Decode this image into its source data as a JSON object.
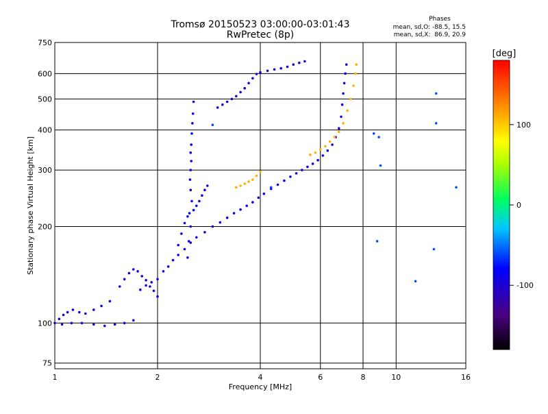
{
  "chart_data": {
    "type": "scatter",
    "title": "Tromsø 20150523 03:00:00-03:01:43",
    "subtitle": "RwPretec (8p)",
    "xlabel": "Frequency [MHz]",
    "ylabel": "Stationary phase Virtual Height [km]",
    "x_scale": "log",
    "y_scale": "log",
    "xlim": [
      1,
      16
    ],
    "ylim": [
      72,
      750
    ],
    "x_ticks": [
      1,
      2,
      4,
      6,
      8,
      10,
      16
    ],
    "x_tick_labels": [
      "1",
      "2",
      "4",
      "6",
      "8",
      "10",
      "16"
    ],
    "y_ticks": [
      75,
      100,
      200,
      300,
      400,
      500,
      600,
      750
    ],
    "y_tick_labels": [
      "75",
      "100",
      "200",
      "300",
      "400",
      "500",
      "600",
      "750"
    ],
    "grid": true,
    "phase_info": {
      "title": "Phases",
      "line1": "mean, sd,O: -88.5, 15.5",
      "line2": "mean, sd,X:  86.9, 20.9"
    },
    "colorbar": {
      "label": "[deg]",
      "range": [
        -180,
        180
      ],
      "ticks": [
        100,
        0,
        -100
      ],
      "tick_labels": [
        "100",
        "0",
        "-100"
      ]
    },
    "series": [
      {
        "name": "low-frequency trace (blue)",
        "phase": -90,
        "points": [
          [
            1.0,
            100
          ],
          [
            1.03,
            103
          ],
          [
            1.06,
            106
          ],
          [
            1.09,
            108
          ],
          [
            1.13,
            110
          ],
          [
            1.18,
            108
          ],
          [
            1.23,
            107
          ],
          [
            1.3,
            110
          ],
          [
            1.37,
            113
          ],
          [
            1.45,
            117
          ],
          [
            1.05,
            99
          ],
          [
            1.12,
            100
          ],
          [
            1.2,
            100
          ],
          [
            1.3,
            99
          ],
          [
            1.4,
            98
          ],
          [
            1.5,
            99
          ],
          [
            1.6,
            100
          ],
          [
            1.7,
            102
          ],
          [
            1.55,
            130
          ],
          [
            1.6,
            137
          ],
          [
            1.65,
            143
          ],
          [
            1.7,
            147
          ],
          [
            1.75,
            145
          ],
          [
            1.8,
            140
          ],
          [
            1.85,
            136
          ],
          [
            1.9,
            130
          ],
          [
            1.95,
            126
          ],
          [
            2.0,
            121
          ],
          [
            1.78,
            127
          ],
          [
            1.85,
            131
          ],
          [
            1.92,
            134
          ],
          [
            2.0,
            137
          ],
          [
            2.08,
            145
          ],
          [
            2.15,
            150
          ],
          [
            2.22,
            157
          ],
          [
            2.3,
            163
          ],
          [
            2.4,
            170
          ],
          [
            2.5,
            178
          ],
          [
            2.6,
            185
          ],
          [
            2.75,
            192
          ],
          [
            2.9,
            200
          ],
          [
            3.05,
            206
          ],
          [
            3.2,
            213
          ],
          [
            3.35,
            220
          ],
          [
            3.5,
            226
          ],
          [
            3.65,
            232
          ],
          [
            3.8,
            238
          ],
          [
            3.95,
            246
          ],
          [
            4.1,
            253
          ],
          [
            4.3,
            262
          ],
          [
            4.5,
            270
          ],
          [
            4.7,
            278
          ],
          [
            4.9,
            286
          ],
          [
            5.1,
            293
          ],
          [
            5.3,
            300
          ],
          [
            5.5,
            307
          ],
          [
            5.7,
            314
          ],
          [
            5.9,
            322
          ],
          [
            6.1,
            333
          ],
          [
            6.3,
            345
          ],
          [
            6.5,
            360
          ],
          [
            6.65,
            380
          ],
          [
            6.8,
            405
          ],
          [
            6.9,
            440
          ],
          [
            6.95,
            480
          ],
          [
            7.0,
            520
          ],
          [
            7.05,
            560
          ],
          [
            7.1,
            600
          ],
          [
            7.15,
            640
          ]
        ]
      },
      {
        "name": "upper trace (blue)",
        "phase": -95,
        "points": [
          [
            3.0,
            470
          ],
          [
            3.1,
            480
          ],
          [
            3.2,
            490
          ],
          [
            3.3,
            500
          ],
          [
            3.4,
            510
          ],
          [
            3.5,
            525
          ],
          [
            3.6,
            540
          ],
          [
            3.7,
            560
          ],
          [
            3.8,
            580
          ],
          [
            3.9,
            598
          ],
          [
            4.0,
            605
          ],
          [
            4.2,
            612
          ],
          [
            4.4,
            618
          ],
          [
            4.6,
            623
          ],
          [
            4.8,
            630
          ],
          [
            5.0,
            640
          ],
          [
            5.2,
            648
          ],
          [
            5.4,
            655
          ]
        ]
      },
      {
        "name": "vertical column near 2.5 MHz (blue)",
        "phase": -85,
        "points": [
          [
            2.45,
            160
          ],
          [
            2.47,
            180
          ],
          [
            2.5,
            200
          ],
          [
            2.48,
            220
          ],
          [
            2.52,
            240
          ],
          [
            2.5,
            260
          ],
          [
            2.49,
            280
          ],
          [
            2.5,
            300
          ],
          [
            2.51,
            320
          ],
          [
            2.5,
            340
          ],
          [
            2.51,
            360
          ],
          [
            2.52,
            390
          ],
          [
            2.53,
            420
          ],
          [
            2.54,
            450
          ],
          [
            2.55,
            490
          ],
          [
            2.3,
            175
          ],
          [
            2.35,
            190
          ],
          [
            2.4,
            205
          ],
          [
            2.45,
            215
          ],
          [
            2.55,
            225
          ],
          [
            2.6,
            232
          ],
          [
            2.65,
            240
          ],
          [
            2.7,
            250
          ],
          [
            2.75,
            260
          ],
          [
            2.8,
            268
          ]
        ]
      },
      {
        "name": "O-mode trace (yellow)",
        "phase": 110,
        "points": [
          [
            3.4,
            265
          ],
          [
            3.5,
            268
          ],
          [
            3.6,
            272
          ],
          [
            3.7,
            276
          ],
          [
            3.8,
            280
          ],
          [
            3.9,
            288
          ],
          [
            4.0,
            296
          ],
          [
            5.6,
            335
          ],
          [
            5.8,
            340
          ],
          [
            6.0,
            348
          ],
          [
            6.2,
            356
          ],
          [
            6.4,
            368
          ],
          [
            6.6,
            380
          ],
          [
            6.8,
            395
          ],
          [
            7.0,
            420
          ],
          [
            7.2,
            460
          ],
          [
            7.35,
            500
          ],
          [
            7.5,
            550
          ],
          [
            7.6,
            600
          ],
          [
            7.65,
            640
          ]
        ]
      },
      {
        "name": "scattered points",
        "phase": -60,
        "points": [
          [
            8.6,
            390
          ],
          [
            8.9,
            380
          ],
          [
            9.0,
            310
          ],
          [
            8.8,
            180
          ],
          [
            13.1,
            520
          ],
          [
            13.1,
            420
          ],
          [
            12.9,
            170
          ],
          [
            11.4,
            135
          ],
          [
            15.0,
            265
          ],
          [
            2.9,
            415
          ],
          [
            4.3,
            265
          ]
        ]
      }
    ]
  }
}
